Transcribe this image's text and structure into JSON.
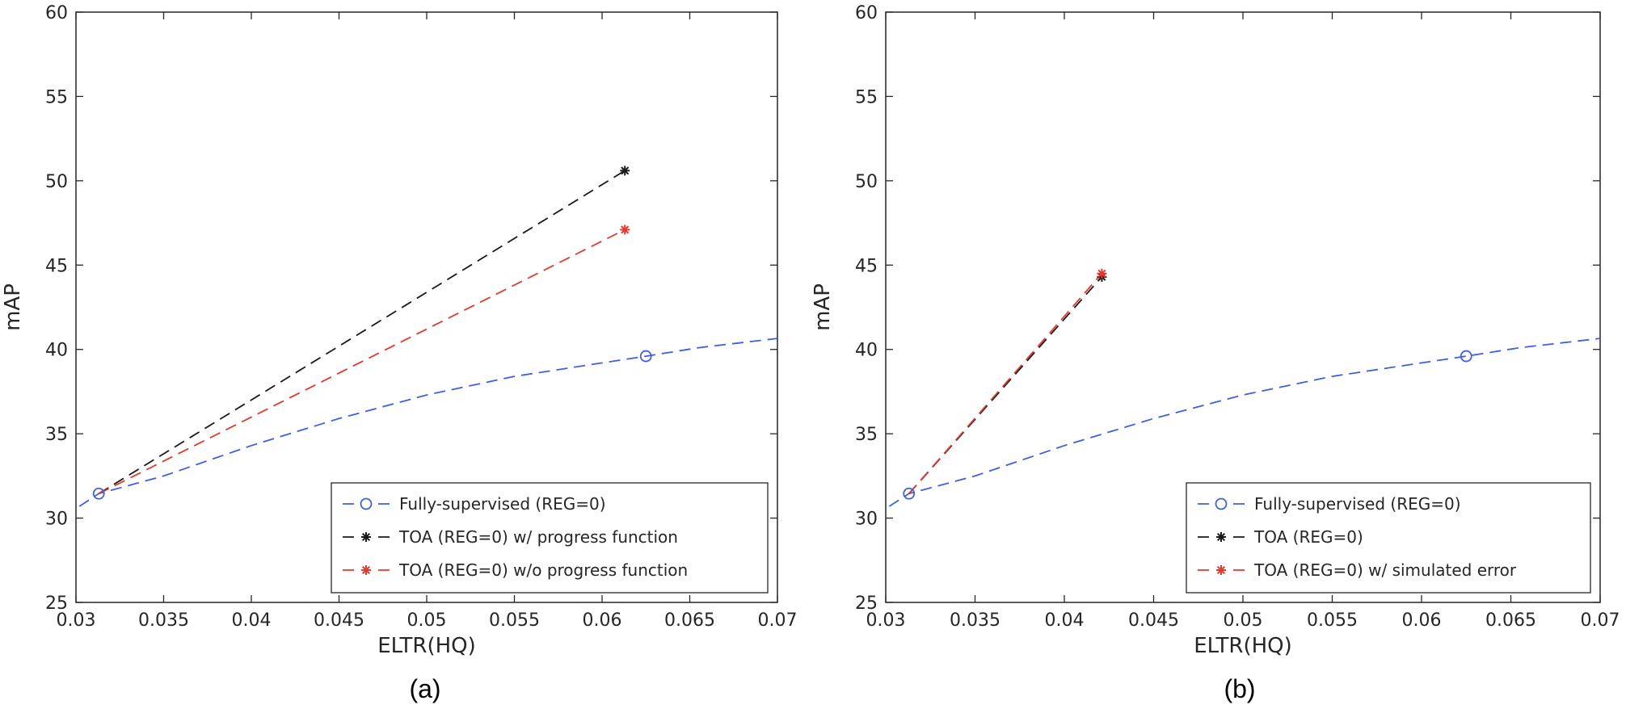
{
  "chart_data": [
    {
      "type": "line",
      "caption": "(a)",
      "xlabel": "ELTR(HQ)",
      "ylabel": "mAP",
      "xlim": [
        0.03,
        0.07
      ],
      "ylim": [
        25,
        60
      ],
      "xticks": [
        0.03,
        0.035,
        0.04,
        0.045,
        0.05,
        0.055,
        0.06,
        0.065,
        0.07
      ],
      "xtick_labels": [
        "0.03",
        "0.035",
        "0.04",
        "0.045",
        "0.05",
        "0.055",
        "0.06",
        "0.065",
        "0.07"
      ],
      "yticks": [
        25,
        30,
        35,
        40,
        45,
        50,
        55,
        60
      ],
      "ytick_labels": [
        "25",
        "30",
        "35",
        "40",
        "45",
        "50",
        "55",
        "60"
      ],
      "grid": false,
      "legend_position": "bottom-right",
      "series": [
        {
          "name": "Fully-supervised (REG=0)",
          "color": "#3f5fe6",
          "marker": "circle",
          "curve": [
            [
              0.0302,
              30.7
            ],
            [
              0.0313,
              31.45
            ],
            [
              0.035,
              32.5
            ],
            [
              0.04,
              34.3
            ],
            [
              0.045,
              35.9
            ],
            [
              0.05,
              37.3
            ],
            [
              0.055,
              38.4
            ],
            [
              0.06,
              39.2
            ],
            [
              0.0625,
              39.6
            ],
            [
              0.0655,
              40.1
            ],
            [
              0.07,
              40.65
            ]
          ],
          "markers": [
            [
              0.0313,
              31.45
            ],
            [
              0.0625,
              39.6
            ]
          ]
        },
        {
          "name": "TOA (REG=0) w/ progress function",
          "color": "#1a1a1a",
          "marker": "asterisk",
          "curve": [
            [
              0.0313,
              31.45
            ],
            [
              0.0613,
              50.6
            ]
          ],
          "markers": [
            [
              0.0613,
              50.6
            ]
          ]
        },
        {
          "name": "TOA (REG=0) w/o progress function",
          "color": "#e8382c",
          "marker": "asterisk",
          "curve": [
            [
              0.0313,
              31.45
            ],
            [
              0.0613,
              47.1
            ]
          ],
          "markers": [
            [
              0.0613,
              47.1
            ]
          ]
        }
      ]
    },
    {
      "type": "line",
      "caption": "(b)",
      "xlabel": "ELTR(HQ)",
      "ylabel": "mAP",
      "xlim": [
        0.03,
        0.07
      ],
      "ylim": [
        25,
        60
      ],
      "xticks": [
        0.03,
        0.035,
        0.04,
        0.045,
        0.05,
        0.055,
        0.06,
        0.065,
        0.07
      ],
      "xtick_labels": [
        "0.03",
        "0.035",
        "0.04",
        "0.045",
        "0.05",
        "0.055",
        "0.06",
        "0.065",
        "0.07"
      ],
      "yticks": [
        25,
        30,
        35,
        40,
        45,
        50,
        55,
        60
      ],
      "ytick_labels": [
        "25",
        "30",
        "35",
        "40",
        "45",
        "50",
        "55",
        "60"
      ],
      "grid": false,
      "legend_position": "bottom-right",
      "series": [
        {
          "name": "Fully-supervised (REG=0)",
          "color": "#3f5fe6",
          "marker": "circle",
          "curve": [
            [
              0.0302,
              30.7
            ],
            [
              0.0313,
              31.45
            ],
            [
              0.035,
              32.5
            ],
            [
              0.04,
              34.3
            ],
            [
              0.045,
              35.9
            ],
            [
              0.05,
              37.3
            ],
            [
              0.055,
              38.4
            ],
            [
              0.06,
              39.2
            ],
            [
              0.0625,
              39.6
            ],
            [
              0.0655,
              40.1
            ],
            [
              0.07,
              40.65
            ]
          ],
          "markers": [
            [
              0.0313,
              31.45
            ],
            [
              0.0625,
              39.6
            ]
          ]
        },
        {
          "name": "TOA (REG=0)",
          "color": "#1a1a1a",
          "marker": "asterisk",
          "curve": [
            [
              0.0313,
              31.45
            ],
            [
              0.0421,
              44.3
            ]
          ],
          "markers": [
            [
              0.0421,
              44.3
            ]
          ]
        },
        {
          "name": "TOA (REG=0) w/ simulated error",
          "color": "#e8382c",
          "marker": "asterisk",
          "curve": [
            [
              0.0313,
              31.45
            ],
            [
              0.0421,
              44.5
            ]
          ],
          "markers": [
            [
              0.0421,
              44.5
            ]
          ]
        }
      ]
    }
  ]
}
